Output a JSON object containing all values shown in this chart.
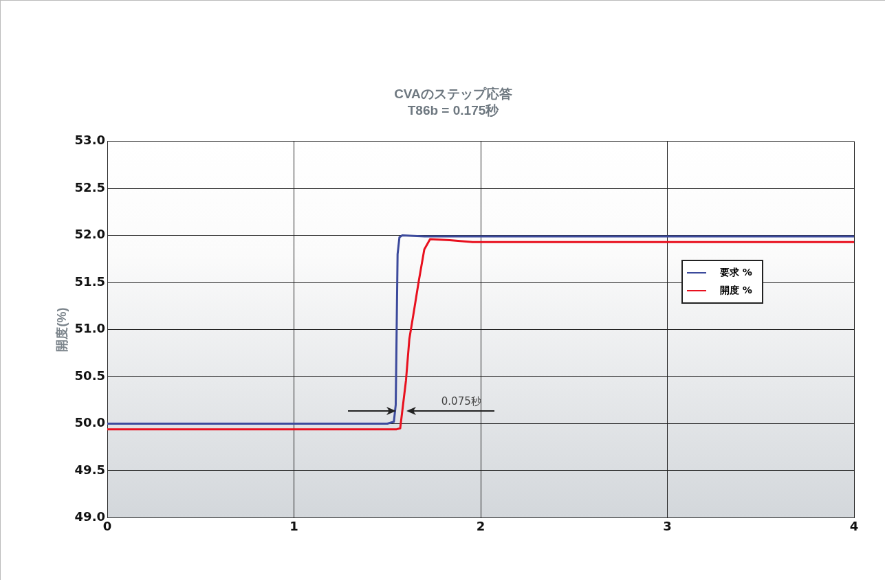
{
  "chart_data": {
    "type": "line",
    "title": "CVAのステップ応答",
    "subtitle": "T86b = 0.175秒",
    "ylabel": "開度(%)",
    "xlim": [
      0,
      4
    ],
    "xticks": [
      0,
      1,
      2,
      3,
      4
    ],
    "ylim": [
      49,
      53
    ],
    "yticks": [
      {
        "value": 49,
        "label": "49.0"
      },
      {
        "value": 49.5,
        "label": "49.5"
      },
      {
        "value": 50,
        "label": "50.0"
      },
      {
        "value": 50.5,
        "label": "50.5"
      },
      {
        "value": 51,
        "label": "51.0"
      },
      {
        "value": 51.5,
        "label": "51.5"
      },
      {
        "value": 52,
        "label": "52.0"
      },
      {
        "value": 52.5,
        "label": "52.5"
      },
      {
        "value": 53,
        "label": "53.0"
      }
    ],
    "grid": true,
    "legend": "right",
    "marker": "none",
    "line_style": "solid",
    "annotations": [
      "0.075秒"
    ],
    "series": [
      {
        "name": "要求 %",
        "color": "#3c4a9c",
        "x": [
          0,
          1.5,
          1.535,
          1.545,
          1.55,
          1.555,
          1.565,
          1.58,
          1.7,
          4
        ],
        "values": [
          50.0,
          50.0,
          50.02,
          50.2,
          51.0,
          51.8,
          51.98,
          52.0,
          51.99,
          51.99
        ]
      },
      {
        "name": "開度 %",
        "color": "#e8101e",
        "x": [
          0,
          1.55,
          1.569,
          1.6,
          1.618,
          1.643,
          1.668,
          1.698,
          1.729,
          1.834,
          1.957,
          4
        ],
        "values": [
          49.94,
          49.94,
          49.95,
          50.46,
          50.9,
          51.2,
          51.51,
          51.85,
          51.96,
          51.95,
          51.93,
          51.93
        ]
      }
    ]
  }
}
